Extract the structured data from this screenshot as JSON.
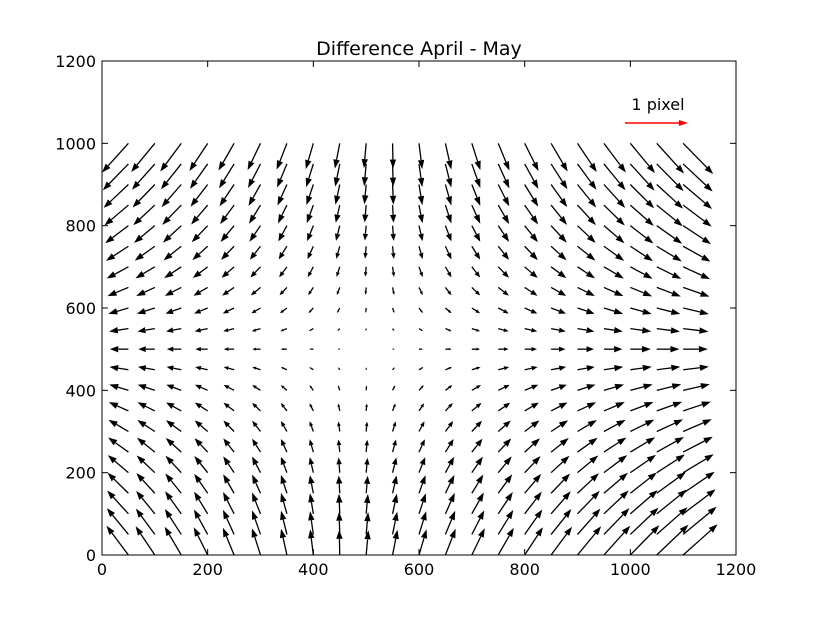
{
  "chart_data": {
    "type": "quiver",
    "title": "Difference April - May",
    "xlabel": "",
    "ylabel": "",
    "xlim": [
      0,
      1200
    ],
    "ylim": [
      0,
      1200
    ],
    "x_ticks": [
      "0",
      "200",
      "400",
      "600",
      "800",
      "1000",
      "1200"
    ],
    "y_ticks": [
      "0",
      "200",
      "400",
      "600",
      "800",
      "1000",
      "1200"
    ],
    "grid": false,
    "grid_spacing": 50,
    "grid_x_range": [
      0,
      1100
    ],
    "grid_y_range": [
      0,
      1000
    ],
    "key": {
      "label": "1 pixel",
      "color": "#ff0000",
      "placement": "top-right"
    },
    "colors": {
      "arrows": "#000000",
      "key": "#ff0000",
      "frame": "#000000",
      "background": "#ffffff"
    }
  }
}
